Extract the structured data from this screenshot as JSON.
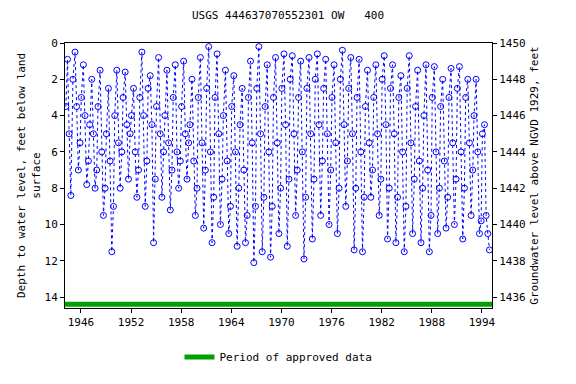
{
  "chart_data": {
    "type": "scatter",
    "title": "USGS 444637070552301 OW   400",
    "y_label": "Depth to water level, feet below land\nsurface",
    "y2_label": "Groundwater level above NGVD 1929, feet",
    "xlim": [
      1944.1,
      1995.2
    ],
    "xticks": [
      1946,
      1952,
      1958,
      1964,
      1970,
      1976,
      1982,
      1988,
      1994
    ],
    "ylim": [
      14.6,
      0
    ],
    "yticks": [
      0,
      2,
      4,
      6,
      8,
      10,
      12,
      14
    ],
    "y2lim": [
      1435.4,
      1450
    ],
    "y2ticks": [
      1436,
      1438,
      1440,
      1442,
      1444,
      1446,
      1448,
      1450
    ],
    "grid": false,
    "legend": "bottom",
    "series": [
      {
        "color": "#0000ff",
        "marker": "circle-open",
        "line_style": "dot",
        "x": [
          1944.2,
          1944.4,
          1944.6,
          1944.8,
          1945.05,
          1945.3,
          1945.5,
          1945.7,
          1945.9,
          1946.05,
          1946.3,
          1946.5,
          1946.7,
          1946.9,
          1947.05,
          1947.3,
          1947.5,
          1947.7,
          1947.9,
          1948.05,
          1948.3,
          1948.5,
          1948.7,
          1948.9,
          1949.05,
          1949.3,
          1949.5,
          1949.7,
          1949.9,
          1950.05,
          1950.3,
          1950.5,
          1950.7,
          1950.9,
          1951.05,
          1951.3,
          1951.5,
          1951.7,
          1951.9,
          1952.05,
          1952.3,
          1952.5,
          1952.7,
          1952.9,
          1953.05,
          1953.3,
          1953.5,
          1953.7,
          1953.9,
          1954.05,
          1954.3,
          1954.5,
          1954.7,
          1954.9,
          1955.05,
          1955.3,
          1955.5,
          1955.7,
          1955.9,
          1956.05,
          1956.3,
          1956.5,
          1956.7,
          1956.9,
          1957.05,
          1957.3,
          1957.5,
          1957.7,
          1957.9,
          1958.05,
          1958.3,
          1958.5,
          1958.7,
          1958.9,
          1959.05,
          1959.3,
          1959.5,
          1959.7,
          1959.9,
          1960.05,
          1960.3,
          1960.5,
          1960.7,
          1960.9,
          1961.05,
          1961.3,
          1961.5,
          1961.7,
          1961.9,
          1962.05,
          1962.3,
          1962.5,
          1962.7,
          1962.9,
          1963.05,
          1963.3,
          1963.5,
          1963.7,
          1963.9,
          1964.05,
          1964.3,
          1964.5,
          1964.7,
          1964.9,
          1965.05,
          1965.3,
          1965.5,
          1965.7,
          1965.9,
          1966.05,
          1966.3,
          1966.5,
          1966.7,
          1966.9,
          1967.05,
          1967.3,
          1967.5,
          1967.7,
          1967.9,
          1968.05,
          1968.3,
          1968.5,
          1968.7,
          1968.9,
          1969.05,
          1969.3,
          1969.5,
          1969.7,
          1969.9,
          1970.05,
          1970.3,
          1970.5,
          1970.7,
          1970.9,
          1971.05,
          1971.3,
          1971.5,
          1971.7,
          1971.9,
          1972.05,
          1972.3,
          1972.5,
          1972.7,
          1972.9,
          1973.05,
          1973.3,
          1973.5,
          1973.7,
          1973.9,
          1974.05,
          1974.3,
          1974.5,
          1974.7,
          1974.9,
          1975.05,
          1975.3,
          1975.5,
          1975.7,
          1975.9,
          1976.05,
          1976.3,
          1976.5,
          1976.7,
          1976.9,
          1977.05,
          1977.3,
          1977.5,
          1977.7,
          1977.9,
          1978.05,
          1978.3,
          1978.5,
          1978.7,
          1978.9,
          1979.05,
          1979.3,
          1979.5,
          1979.7,
          1979.9,
          1980.05,
          1980.3,
          1980.5,
          1980.7,
          1980.9,
          1981.05,
          1981.3,
          1981.5,
          1981.7,
          1981.9,
          1982.05,
          1982.3,
          1982.5,
          1982.7,
          1982.9,
          1983.05,
          1983.3,
          1983.5,
          1983.7,
          1983.9,
          1984.05,
          1984.3,
          1984.5,
          1984.7,
          1984.9,
          1985.05,
          1985.3,
          1985.5,
          1985.7,
          1985.9,
          1986.05,
          1986.3,
          1986.5,
          1986.7,
          1986.9,
          1987.05,
          1987.3,
          1987.5,
          1987.7,
          1987.9,
          1988.05,
          1988.3,
          1988.5,
          1988.7,
          1988.9,
          1989.05,
          1989.3,
          1989.5,
          1989.7,
          1989.9,
          1990.05,
          1990.3,
          1990.5,
          1990.7,
          1990.9,
          1991.05,
          1991.3,
          1991.5,
          1991.7,
          1991.9,
          1992.05,
          1992.3,
          1992.5,
          1992.7,
          1992.9,
          1993.05,
          1993.3,
          1993.5,
          1993.7,
          1993.9,
          1994.05,
          1994.3,
          1994.5,
          1994.7,
          1994.9
        ],
        "values": [
          3.5,
          0.9,
          5.0,
          8.4,
          2.0,
          0.5,
          3.5,
          7.0,
          5.5,
          3.0,
          1.2,
          4.0,
          7.8,
          6.5,
          4.5,
          2.0,
          5.0,
          8.0,
          7.0,
          3.5,
          1.5,
          6.0,
          9.5,
          8.0,
          5.0,
          2.5,
          6.5,
          11.5,
          9.0,
          4.0,
          1.5,
          5.5,
          8.0,
          6.0,
          3.0,
          1.6,
          4.5,
          7.5,
          5.0,
          4.0,
          2.5,
          6.0,
          8.5,
          7.0,
          3.0,
          0.5,
          4.0,
          9.0,
          6.5,
          2.5,
          1.8,
          4.5,
          11.0,
          7.5,
          3.5,
          0.8,
          5.0,
          8.5,
          6.0,
          4.0,
          1.5,
          5.5,
          9.2,
          7.0,
          3.0,
          1.2,
          6.0,
          8.0,
          6.5,
          3.5,
          1.0,
          5.0,
          7.5,
          5.5,
          4.5,
          2.0,
          6.5,
          9.5,
          8.0,
          3.0,
          0.8,
          5.5,
          10.2,
          7.0,
          2.5,
          0.2,
          6.0,
          11.0,
          8.5,
          3.0,
          0.6,
          5.0,
          10.0,
          7.5,
          4.0,
          1.5,
          6.5,
          10.5,
          9.0,
          3.5,
          1.8,
          6.0,
          11.2,
          8.0,
          4.5,
          2.5,
          7.0,
          11.0,
          9.5,
          3.0,
          1.0,
          5.5,
          12.1,
          9.0,
          2.5,
          0.2,
          5.0,
          11.5,
          8.5,
          3.5,
          1.2,
          6.0,
          11.8,
          9.0,
          3.0,
          0.8,
          5.5,
          10.5,
          8.0,
          2.5,
          0.6,
          4.5,
          11.2,
          7.5,
          2.0,
          0.7,
          5.0,
          9.5,
          7.0,
          3.0,
          1.0,
          6.0,
          11.9,
          8.5,
          2.5,
          0.8,
          5.0,
          10.8,
          7.5,
          2.0,
          0.6,
          4.5,
          9.5,
          6.5,
          2.5,
          0.9,
          5.0,
          10.0,
          7.0,
          3.0,
          1.2,
          5.5,
          10.5,
          8.0,
          2.0,
          0.4,
          4.5,
          9.0,
          6.5,
          2.5,
          0.8,
          5.0,
          11.4,
          8.0,
          3.0,
          0.9,
          6.0,
          11.5,
          8.5,
          3.5,
          1.5,
          5.5,
          8.5,
          7.0,
          3.0,
          1.2,
          5.0,
          9.5,
          7.5,
          2.0,
          0.7,
          4.5,
          10.8,
          8.0,
          2.5,
          1.2,
          5.0,
          11.0,
          8.5,
          3.0,
          1.8,
          6.0,
          11.5,
          9.0,
          2.5,
          0.7,
          5.5,
          10.5,
          7.5,
          3.5,
          1.5,
          6.5,
          11.0,
          8.0,
          4.0,
          1.2,
          7.0,
          11.5,
          9.5,
          3.0,
          1.3,
          6.0,
          10.5,
          8.0,
          3.5,
          2.0,
          6.5,
          10.2,
          8.5,
          3.0,
          1.4,
          5.5,
          10.0,
          7.5,
          2.5,
          1.3,
          6.0,
          10.8,
          8.0,
          3.0,
          2.0,
          5.5,
          9.5,
          7.0,
          4.0,
          2.0,
          6.0,
          10.5,
          9.8,
          5.0,
          4.5,
          9.5,
          10.5,
          11.4
        ]
      },
      {
        "name": "Period of approved data",
        "color": "#00a000",
        "axis": "y2",
        "type": "line",
        "line_style": "solid",
        "x": [
          1944.1,
          1995.2
        ],
        "values": [
          1435.6,
          1435.6
        ]
      }
    ]
  }
}
